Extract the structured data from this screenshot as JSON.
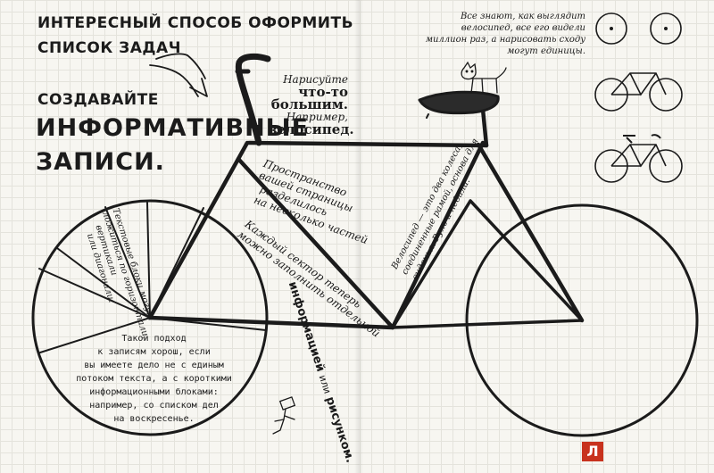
{
  "header": {
    "title_line1": "ИНТЕРЕСНЫЙ СПОСОБ ОФОРМИТЬ",
    "title_line2": "СПИСОК ЗАДАЧ"
  },
  "heading": {
    "line1": "СОЗДАВАЙТЕ",
    "line2": "ИНФОРМАТИВНЫЕ",
    "line3": "ЗАПИСИ."
  },
  "notes": {
    "draw_big": [
      "Нарисуйте",
      "что-то большим.",
      "Например,",
      "велосипед."
    ],
    "space": [
      "Пространство",
      "вашей страницы",
      "разделилось",
      "на несколько частей"
    ],
    "sector": [
      "Каждый сектор теперь",
      "можно заполнить отдельной"
    ],
    "info": [
      "информацией",
      "или",
      "рисунком."
    ],
    "wheel_text": [
      "Текстовые блоки могут",
      "ложиться по горизонтали,",
      "вертикали",
      "или диагонали."
    ],
    "approach": [
      "Такой подход",
      "к записям хорош, если",
      "вы имеете дело не с единым",
      "потоком текста, а с короткими",
      "информационными блоками:",
      "например, со списком дел",
      "на воскресенье."
    ],
    "bike_desc": [
      "Велосипед — это два колеса,",
      "соединенные рамой, основа для",
      "сиденья. Руль и педали."
    ],
    "everyone_knows": [
      "Все знают, как выглядит",
      "велосипед, все его видели",
      "миллион раз, а нарисовать сходу",
      "могут единицы."
    ]
  },
  "logo": {
    "letter": "Л",
    "color": "#c8321e"
  }
}
